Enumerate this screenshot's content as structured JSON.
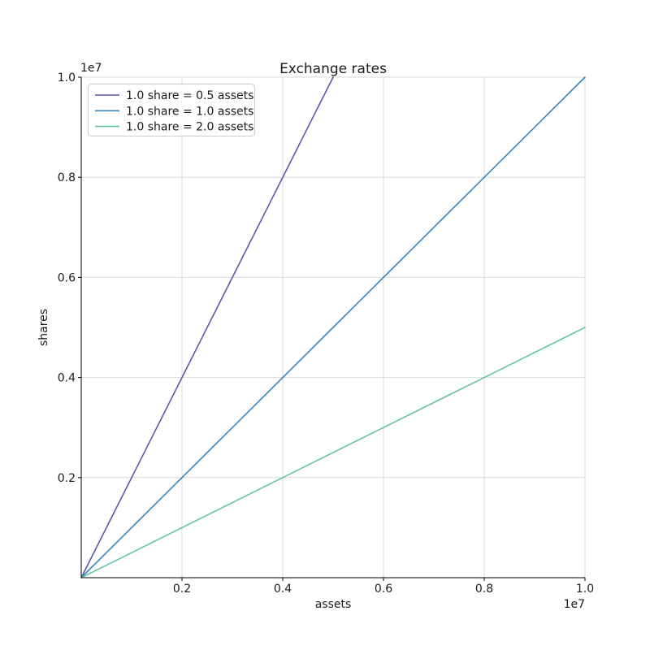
{
  "chart_data": {
    "type": "line",
    "title": "Exchange rates",
    "xlabel": "assets",
    "ylabel": "shares",
    "x_offset_text": "1e7",
    "y_offset_text": "1e7",
    "xlim": [
      0,
      10000000
    ],
    "ylim": [
      0,
      10000000
    ],
    "grid": true,
    "legend_position": "upper left",
    "xticks": {
      "values": [
        2000000,
        4000000,
        6000000,
        8000000,
        10000000
      ],
      "labels": [
        "0.2",
        "0.4",
        "0.6",
        "0.8",
        "1.0"
      ]
    },
    "yticks": {
      "values": [
        2000000,
        4000000,
        6000000,
        8000000,
        10000000
      ],
      "labels": [
        "0.2",
        "0.4",
        "0.6",
        "0.8",
        "1.0"
      ]
    },
    "series": [
      {
        "name": "1.0 share = 0.5 assets",
        "color": "#5c59a9",
        "assets_per_share": 0.5,
        "points": [
          [
            0,
            0
          ],
          [
            5000000,
            10000000
          ]
        ]
      },
      {
        "name": "1.0 share = 1.0 assets",
        "color": "#3585c1",
        "assets_per_share": 1.0,
        "points": [
          [
            0,
            0
          ],
          [
            10000000,
            10000000
          ]
        ]
      },
      {
        "name": "1.0 share = 2.0 assets",
        "color": "#62c69b",
        "assets_per_share": 2.0,
        "points": [
          [
            0,
            0
          ],
          [
            10000000,
            5000000
          ]
        ]
      }
    ],
    "colors": {
      "background": "#ffffff",
      "grid": "#d9d9d9",
      "spine": "#000000",
      "text": "#1a1a1a",
      "legend_border": "#cccccc"
    }
  }
}
